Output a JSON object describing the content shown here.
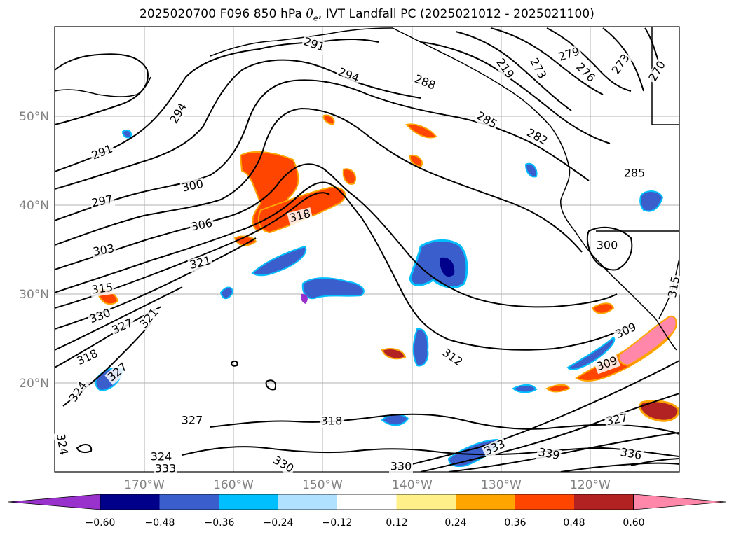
{
  "title": {
    "prefix": "2025020700 F096 850 hPa ",
    "theta": "θ",
    "theta_sub": "e",
    "suffix": ", IVT Landfall PC (2025021012 - 2025021100)"
  },
  "map": {
    "longitude_labels": [
      "170°W",
      "160°W",
      "150°W",
      "140°W",
      "130°W",
      "120°W"
    ],
    "latitude_labels": [
      "50°N",
      "40°N",
      "30°N",
      "20°N"
    ],
    "contour_labels": [
      "291",
      "294",
      "288",
      "279",
      "273",
      "276",
      "273",
      "270",
      "219",
      "285",
      "282",
      "294",
      "291",
      "300",
      "297",
      "306",
      "318",
      "303",
      "321",
      "315",
      "330",
      "327",
      "321",
      "318",
      "327",
      "324",
      "327",
      "318",
      "324",
      "333",
      "330",
      "330",
      "333",
      "339",
      "336",
      "312",
      "309",
      "309",
      "327",
      "285",
      "300",
      "315",
      "324"
    ],
    "colors": {
      "contour": "#000000",
      "coast": "#000000",
      "grid": "#b0b0b0"
    }
  },
  "colorbar": {
    "ticks": [
      "−0.60",
      "−0.48",
      "−0.36",
      "−0.24",
      "−0.12",
      "0.12",
      "0.24",
      "0.36",
      "0.48",
      "0.60"
    ],
    "colors": [
      "#9932cc",
      "#00008b",
      "#3a5fcd",
      "#00bfff",
      "#b0e2ff",
      "#ffffff",
      "#fff08a",
      "#ffa500",
      "#ff4500",
      "#b22222",
      "#ff88aa"
    ]
  }
}
